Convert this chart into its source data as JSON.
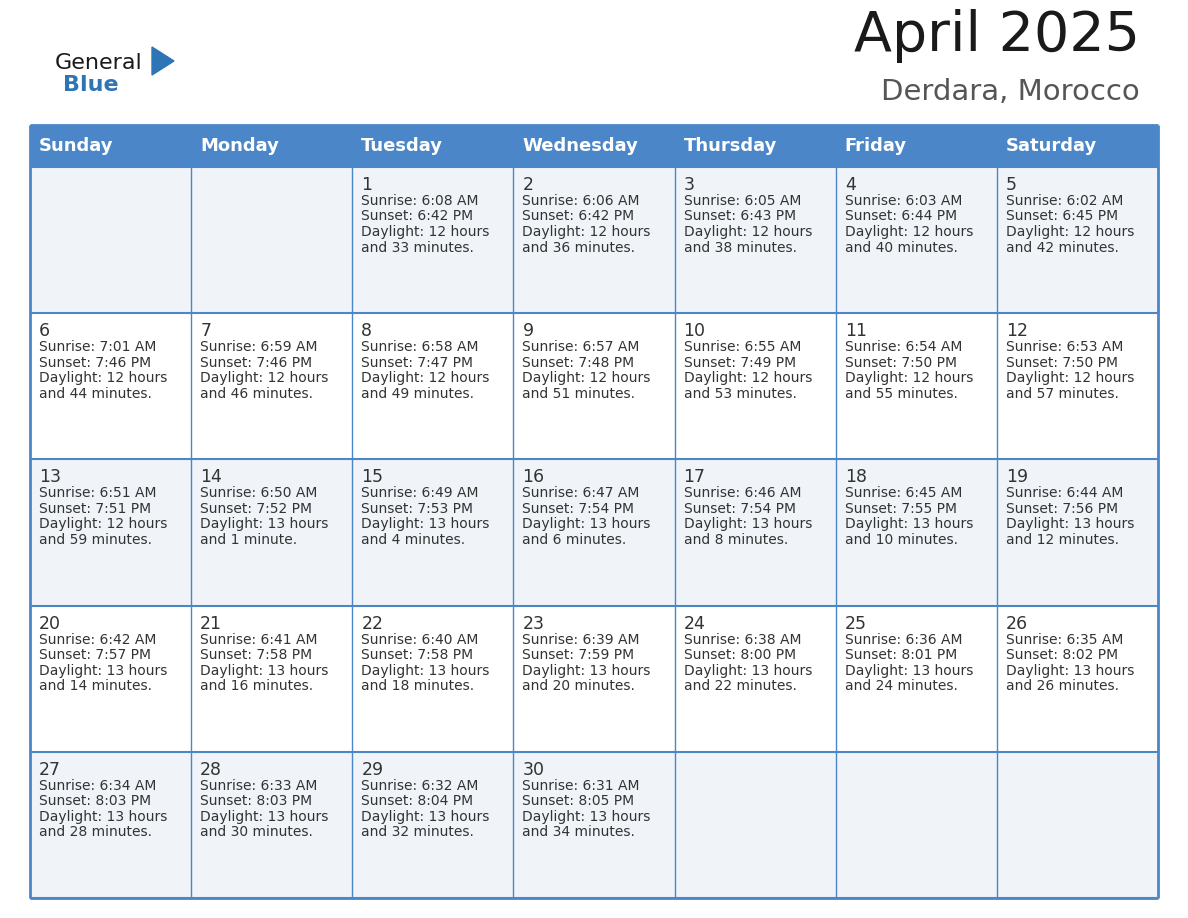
{
  "title": "April 2025",
  "subtitle": "Derdara, Morocco",
  "days_of_week": [
    "Sunday",
    "Monday",
    "Tuesday",
    "Wednesday",
    "Thursday",
    "Friday",
    "Saturday"
  ],
  "header_bg": "#4a86c8",
  "header_text_color": "#ffffff",
  "cell_bg_light": "#f0f4f8",
  "cell_bg_white": "#ffffff",
  "border_color": "#4a86c8",
  "text_color": "#333333",
  "logo_black": "#1a1a1a",
  "logo_blue": "#2e75b6",
  "title_color": "#1a1a1a",
  "subtitle_color": "#555555",
  "calendar_data": [
    [
      {
        "day": "",
        "sunrise": "",
        "sunset": "",
        "daylight": ""
      },
      {
        "day": "",
        "sunrise": "",
        "sunset": "",
        "daylight": ""
      },
      {
        "day": "1",
        "sunrise": "6:08 AM",
        "sunset": "6:42 PM",
        "daylight": "12 hours and 33 minutes."
      },
      {
        "day": "2",
        "sunrise": "6:06 AM",
        "sunset": "6:42 PM",
        "daylight": "12 hours and 36 minutes."
      },
      {
        "day": "3",
        "sunrise": "6:05 AM",
        "sunset": "6:43 PM",
        "daylight": "12 hours and 38 minutes."
      },
      {
        "day": "4",
        "sunrise": "6:03 AM",
        "sunset": "6:44 PM",
        "daylight": "12 hours and 40 minutes."
      },
      {
        "day": "5",
        "sunrise": "6:02 AM",
        "sunset": "6:45 PM",
        "daylight": "12 hours and 42 minutes."
      }
    ],
    [
      {
        "day": "6",
        "sunrise": "7:01 AM",
        "sunset": "7:46 PM",
        "daylight": "12 hours and 44 minutes."
      },
      {
        "day": "7",
        "sunrise": "6:59 AM",
        "sunset": "7:46 PM",
        "daylight": "12 hours and 46 minutes."
      },
      {
        "day": "8",
        "sunrise": "6:58 AM",
        "sunset": "7:47 PM",
        "daylight": "12 hours and 49 minutes."
      },
      {
        "day": "9",
        "sunrise": "6:57 AM",
        "sunset": "7:48 PM",
        "daylight": "12 hours and 51 minutes."
      },
      {
        "day": "10",
        "sunrise": "6:55 AM",
        "sunset": "7:49 PM",
        "daylight": "12 hours and 53 minutes."
      },
      {
        "day": "11",
        "sunrise": "6:54 AM",
        "sunset": "7:50 PM",
        "daylight": "12 hours and 55 minutes."
      },
      {
        "day": "12",
        "sunrise": "6:53 AM",
        "sunset": "7:50 PM",
        "daylight": "12 hours and 57 minutes."
      }
    ],
    [
      {
        "day": "13",
        "sunrise": "6:51 AM",
        "sunset": "7:51 PM",
        "daylight": "12 hours and 59 minutes."
      },
      {
        "day": "14",
        "sunrise": "6:50 AM",
        "sunset": "7:52 PM",
        "daylight": "13 hours and 1 minute."
      },
      {
        "day": "15",
        "sunrise": "6:49 AM",
        "sunset": "7:53 PM",
        "daylight": "13 hours and 4 minutes."
      },
      {
        "day": "16",
        "sunrise": "6:47 AM",
        "sunset": "7:54 PM",
        "daylight": "13 hours and 6 minutes."
      },
      {
        "day": "17",
        "sunrise": "6:46 AM",
        "sunset": "7:54 PM",
        "daylight": "13 hours and 8 minutes."
      },
      {
        "day": "18",
        "sunrise": "6:45 AM",
        "sunset": "7:55 PM",
        "daylight": "13 hours and 10 minutes."
      },
      {
        "day": "19",
        "sunrise": "6:44 AM",
        "sunset": "7:56 PM",
        "daylight": "13 hours and 12 minutes."
      }
    ],
    [
      {
        "day": "20",
        "sunrise": "6:42 AM",
        "sunset": "7:57 PM",
        "daylight": "13 hours and 14 minutes."
      },
      {
        "day": "21",
        "sunrise": "6:41 AM",
        "sunset": "7:58 PM",
        "daylight": "13 hours and 16 minutes."
      },
      {
        "day": "22",
        "sunrise": "6:40 AM",
        "sunset": "7:58 PM",
        "daylight": "13 hours and 18 minutes."
      },
      {
        "day": "23",
        "sunrise": "6:39 AM",
        "sunset": "7:59 PM",
        "daylight": "13 hours and 20 minutes."
      },
      {
        "day": "24",
        "sunrise": "6:38 AM",
        "sunset": "8:00 PM",
        "daylight": "13 hours and 22 minutes."
      },
      {
        "day": "25",
        "sunrise": "6:36 AM",
        "sunset": "8:01 PM",
        "daylight": "13 hours and 24 minutes."
      },
      {
        "day": "26",
        "sunrise": "6:35 AM",
        "sunset": "8:02 PM",
        "daylight": "13 hours and 26 minutes."
      }
    ],
    [
      {
        "day": "27",
        "sunrise": "6:34 AM",
        "sunset": "8:03 PM",
        "daylight": "13 hours and 28 minutes."
      },
      {
        "day": "28",
        "sunrise": "6:33 AM",
        "sunset": "8:03 PM",
        "daylight": "13 hours and 30 minutes."
      },
      {
        "day": "29",
        "sunrise": "6:32 AM",
        "sunset": "8:04 PM",
        "daylight": "13 hours and 32 minutes."
      },
      {
        "day": "30",
        "sunrise": "6:31 AM",
        "sunset": "8:05 PM",
        "daylight": "13 hours and 34 minutes."
      },
      {
        "day": "",
        "sunrise": "",
        "sunset": "",
        "daylight": ""
      },
      {
        "day": "",
        "sunrise": "",
        "sunset": "",
        "daylight": ""
      },
      {
        "day": "",
        "sunrise": "",
        "sunset": "",
        "daylight": ""
      }
    ]
  ]
}
